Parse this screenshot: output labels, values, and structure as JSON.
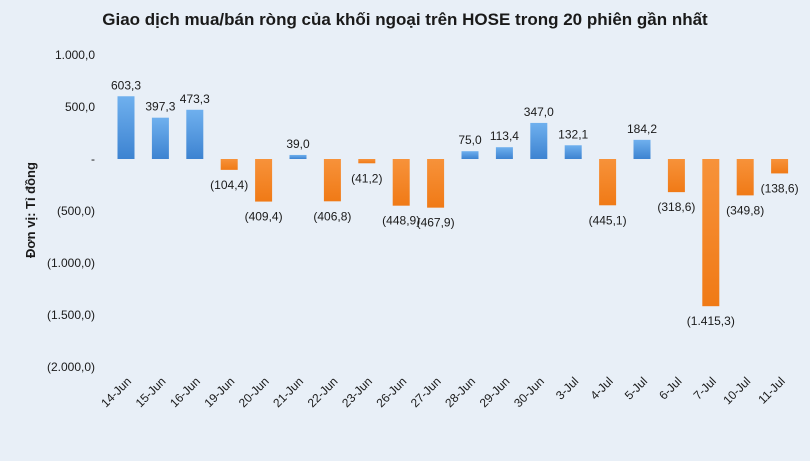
{
  "chart_data": {
    "type": "bar",
    "title": "Giao dịch mua/bán ròng của khối ngoại trên HOSE trong 20 phiên gần nhất",
    "ylabel": "Đơn vị: Tỉ đồng",
    "xlabel": "",
    "ylim": [
      -2000,
      1000
    ],
    "yticks": [
      1000,
      500,
      0,
      -500,
      -1000,
      -1500,
      -2000
    ],
    "ytick_labels": [
      "1.000,0",
      "500,0",
      "-",
      "(500,0)",
      "(1.000,0)",
      "(1.500,0)",
      "(2.000,0)"
    ],
    "categories": [
      "14-Jun",
      "15-Jun",
      "16-Jun",
      "19-Jun",
      "20-Jun",
      "21-Jun",
      "22-Jun",
      "23-Jun",
      "26-Jun",
      "27-Jun",
      "28-Jun",
      "29-Jun",
      "30-Jun",
      "3-Jul",
      "4-Jul",
      "5-Jul",
      "6-Jul",
      "7-Jul",
      "10-Jul",
      "11-Jul"
    ],
    "values": [
      603.3,
      397.3,
      473.3,
      -104.4,
      -409.4,
      39.0,
      -406.8,
      -41.2,
      -448.9,
      -467.9,
      75.0,
      113.4,
      347.0,
      132.1,
      -445.1,
      184.2,
      -318.6,
      -1415.3,
      -349.8,
      -138.6
    ],
    "value_labels": [
      "603,3",
      "397,3",
      "473,3",
      "(104,4)",
      "(409,4)",
      "39,0",
      "(406,8)",
      "(41,2)",
      "(448,9)",
      "(467,9)",
      "75,0",
      "113,4",
      "347,0",
      "132,1",
      "(445,1)",
      "184,2",
      "(318,6)",
      "(1.415,3)",
      "(349,8)",
      "(138,6)"
    ],
    "colors": {
      "positive": "#4a90d9",
      "negative": "#f5821f"
    },
    "grid": false,
    "legend": "none"
  }
}
